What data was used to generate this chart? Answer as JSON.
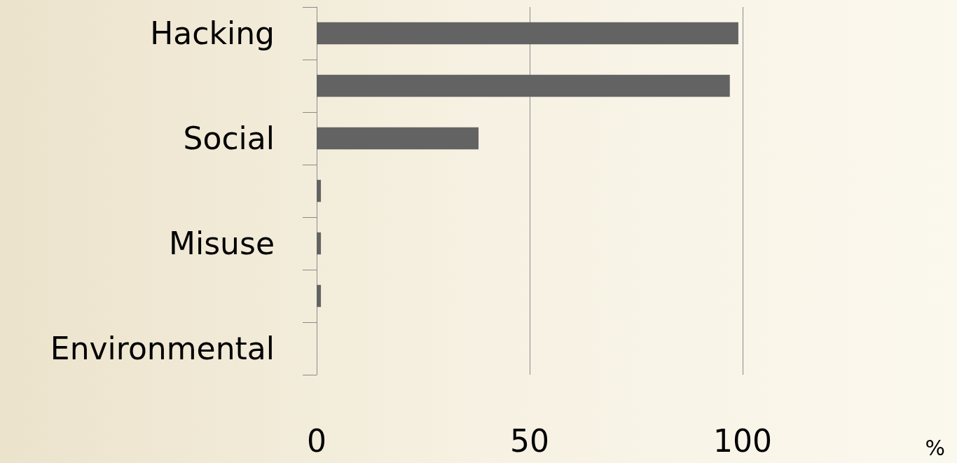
{
  "chart_data": {
    "type": "bar",
    "orientation": "horizontal",
    "categories": [
      "Hacking",
      null,
      "Social",
      null,
      "Misuse",
      null,
      "Environmental"
    ],
    "values": [
      99,
      97,
      38,
      1,
      1,
      1,
      0
    ],
    "color": "#636363",
    "xlim": [
      0,
      150
    ],
    "xticks": [
      0,
      50,
      100
    ],
    "xlabel": "%",
    "grid": "x"
  }
}
